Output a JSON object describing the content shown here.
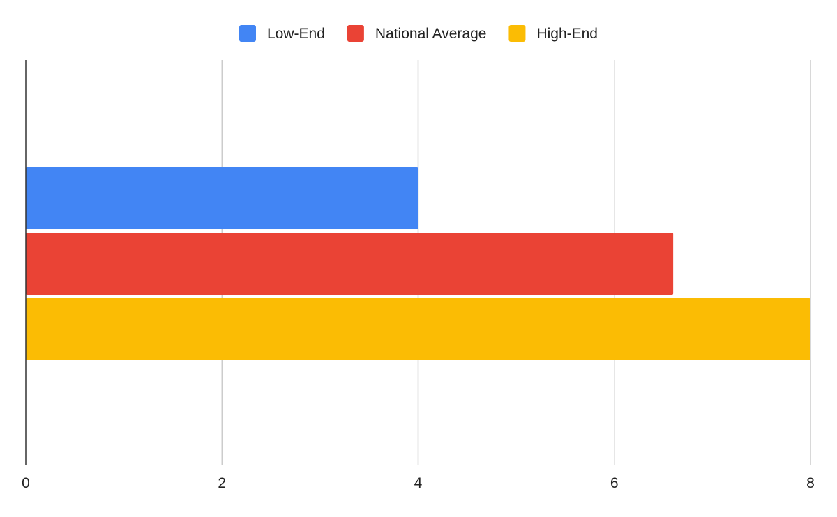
{
  "chart_data": {
    "type": "bar",
    "orientation": "horizontal",
    "title": "",
    "xlabel": "",
    "ylabel": "",
    "categories": [
      ""
    ],
    "series": [
      {
        "name": "Low-End",
        "values": [
          4
        ],
        "color": "#4285F4"
      },
      {
        "name": "National Average",
        "values": [
          6.6
        ],
        "color": "#EA4335"
      },
      {
        "name": "High-End",
        "values": [
          8
        ],
        "color": "#FBBC04"
      }
    ],
    "xlim": [
      0,
      8
    ],
    "xticks": [
      0,
      2,
      4,
      6,
      8
    ],
    "grid": true,
    "legend_position": "top-center"
  }
}
